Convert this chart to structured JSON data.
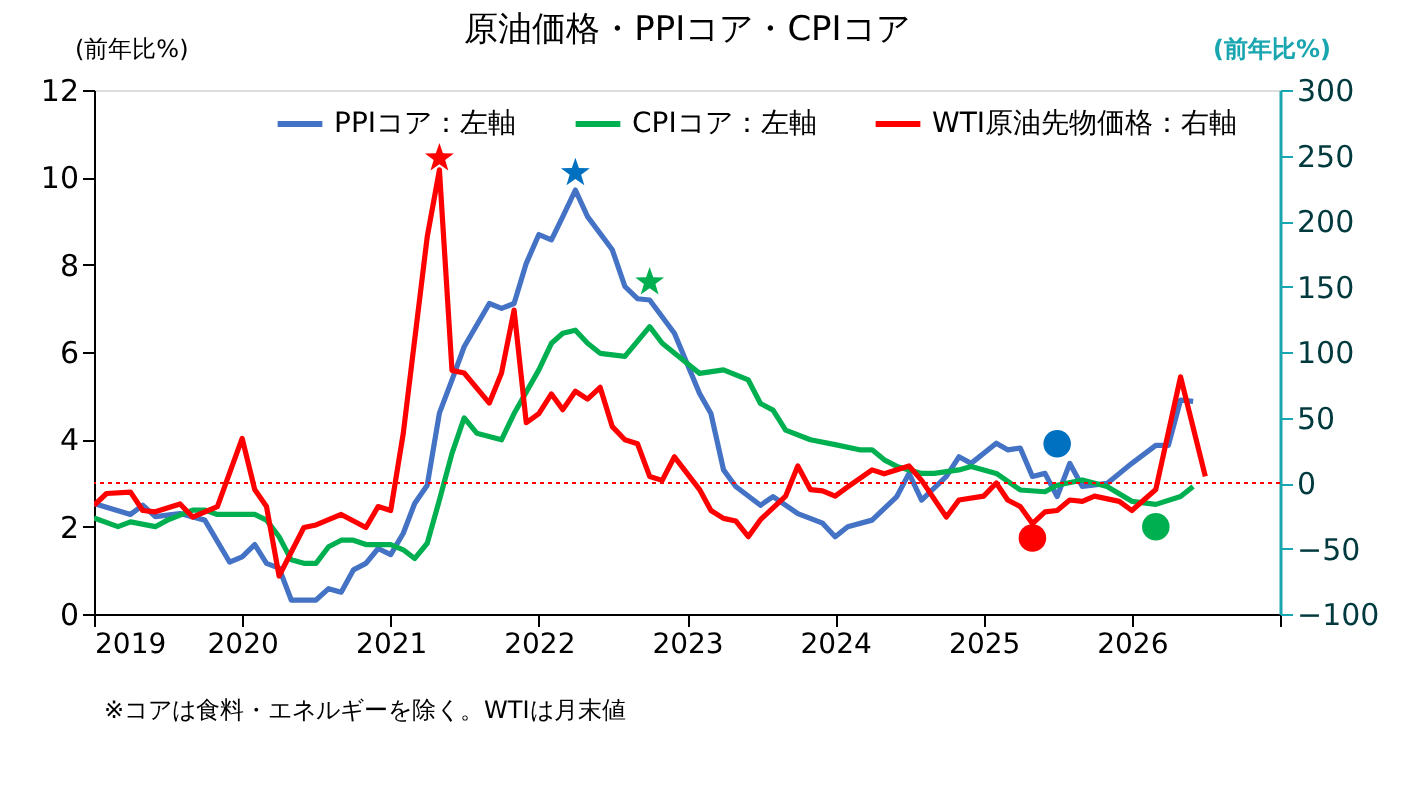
{
  "chart_data": {
    "type": "line",
    "title": "原油価格・PPIコア・CPIコア",
    "ylabel": "(前年比%)",
    "y2label": "(前年比%)",
    "xlim": [
      "2019-01",
      "2027-01"
    ],
    "xticks": [
      {
        "value": "2019-01",
        "label": "2019"
      },
      {
        "value": "2020-01",
        "label": "2020"
      },
      {
        "value": "2021-01",
        "label": "2021"
      },
      {
        "value": "2022-01",
        "label": "2022"
      },
      {
        "value": "2023-01",
        "label": "2023"
      },
      {
        "value": "2024-01",
        "label": "2024"
      },
      {
        "value": "2025-01",
        "label": "2025"
      },
      {
        "value": "2026-01",
        "label": "2026"
      },
      {
        "value": "2027-01",
        "label": null
      }
    ],
    "ylim": [
      0,
      12
    ],
    "yticks": [
      0,
      2,
      4,
      6,
      8,
      10,
      12
    ],
    "y2lim": [
      -100,
      300
    ],
    "y2ticks": [
      -100,
      -50,
      0,
      50,
      100,
      150,
      200,
      250,
      300
    ],
    "grid": false,
    "legend": "top",
    "marker": "none",
    "line_style": "solid",
    "ref_lines": [
      {
        "axis": "y2",
        "value": 0,
        "color": "#ff0000",
        "line_style": "dotted"
      }
    ],
    "annotations": [
      "※コアは食料・エネルギーを除く。WTIは月末値"
    ],
    "series": [
      {
        "name": "PPIコア：左軸",
        "color": "#4472c4",
        "x": [
          "2019-01",
          "2019-04",
          "2019-05",
          "2019-06",
          "2019-08",
          "2019-10",
          "2019-12",
          "2020-01",
          "2020-02",
          "2020-03",
          "2020-04",
          "2020-05",
          "2020-07",
          "2020-08",
          "2020-09",
          "2020-10",
          "2020-11",
          "2020-12",
          "2021-01",
          "2021-02",
          "2021-03",
          "2021-04",
          "2021-05",
          "2021-06",
          "2021-07",
          "2021-09",
          "2021-10",
          "2021-11",
          "2021-12",
          "2022-01",
          "2022-02",
          "2022-03",
          "2022-04",
          "2022-05",
          "2022-07",
          "2022-08",
          "2022-09",
          "2022-10",
          "2022-12",
          "2023-02",
          "2023-03",
          "2023-04",
          "2023-05",
          "2023-07",
          "2023-08",
          "2023-10",
          "2023-12",
          "2024-01",
          "2024-02",
          "2024-04",
          "2024-06",
          "2024-07",
          "2024-08",
          "2024-10",
          "2024-11",
          "2024-12",
          "2025-02",
          "2025-03",
          "2025-04",
          "2025-05",
          "2025-06",
          "2025-07",
          "2025-08",
          "2025-09",
          "2025-11",
          "2026-01",
          "2026-03",
          "2026-04",
          "2026-05",
          "2026-06"
        ],
        "values": [
          2.53,
          2.28,
          2.49,
          2.23,
          2.3,
          2.15,
          1.19,
          1.31,
          1.59,
          1.16,
          1.05,
          0.32,
          0.32,
          0.58,
          0.5,
          1.01,
          1.16,
          1.5,
          1.36,
          1.85,
          2.53,
          2.95,
          4.6,
          5.36,
          6.12,
          7.11,
          7.0,
          7.11,
          8.03,
          8.69,
          8.57,
          9.1,
          9.71,
          9.1,
          8.34,
          7.5,
          7.22,
          7.19,
          6.43,
          5.05,
          4.59,
          3.3,
          2.92,
          2.49,
          2.69,
          2.3,
          2.08,
          1.77,
          2.0,
          2.15,
          2.69,
          3.22,
          2.61,
          3.15,
          3.6,
          3.45,
          3.91,
          3.76,
          3.8,
          3.15,
          3.22,
          2.69,
          3.45,
          2.92,
          2.99,
          3.45,
          3.86,
          3.86,
          4.9,
          4.87
        ]
      },
      {
        "name": "CPIコア：左軸",
        "color": "#00b050",
        "x": [
          "2019-01",
          "2019-03",
          "2019-04",
          "2019-06",
          "2019-07",
          "2019-09",
          "2019-10",
          "2019-11",
          "2020-02",
          "2020-03",
          "2020-04",
          "2020-05",
          "2020-06",
          "2020-07",
          "2020-08",
          "2020-09",
          "2020-10",
          "2020-11",
          "2021-01",
          "2021-02",
          "2021-03",
          "2021-04",
          "2021-05",
          "2021-06",
          "2021-07",
          "2021-08",
          "2021-10",
          "2021-11",
          "2022-01",
          "2022-02",
          "2022-03",
          "2022-04",
          "2022-05",
          "2022-06",
          "2022-08",
          "2022-10",
          "2022-11",
          "2023-01",
          "2023-02",
          "2023-04",
          "2023-06",
          "2023-07",
          "2023-08",
          "2023-09",
          "2023-11",
          "2024-01",
          "2024-03",
          "2024-04",
          "2024-05",
          "2024-06",
          "2024-08",
          "2024-09",
          "2024-11",
          "2024-12",
          "2025-02",
          "2025-04",
          "2025-06",
          "2025-07",
          "2025-09",
          "2025-11",
          "2026-01",
          "2026-03",
          "2026-05",
          "2026-06"
        ],
        "values": [
          2.2,
          2.0,
          2.11,
          2.0,
          2.15,
          2.38,
          2.38,
          2.28,
          2.28,
          2.15,
          1.77,
          1.24,
          1.16,
          1.16,
          1.54,
          1.69,
          1.69,
          1.59,
          1.59,
          1.47,
          1.27,
          1.62,
          2.61,
          3.68,
          4.49,
          4.14,
          3.99,
          4.59,
          5.59,
          6.2,
          6.43,
          6.5,
          6.2,
          5.97,
          5.9,
          6.58,
          6.2,
          5.74,
          5.51,
          5.59,
          5.36,
          4.82,
          4.67,
          4.21,
          3.99,
          3.88,
          3.76,
          3.76,
          3.53,
          3.38,
          3.22,
          3.22,
          3.3,
          3.38,
          3.22,
          2.84,
          2.8,
          2.95,
          3.07,
          2.92,
          2.58,
          2.51,
          2.69,
          2.92
        ]
      },
      {
        "name": "WTI原油先物価格：右軸",
        "color": "#ff0000",
        "axis": "y2",
        "x": [
          "2019-01",
          "2019-02",
          "2019-04",
          "2019-05",
          "2019-06",
          "2019-08",
          "2019-09",
          "2019-11",
          "2020-01",
          "2020-02",
          "2020-03",
          "2020-04",
          "2020-06",
          "2020-07",
          "2020-09",
          "2020-11",
          "2020-12",
          "2021-01",
          "2021-02",
          "2021-04",
          "2021-05",
          "2021-06",
          "2021-07",
          "2021-09",
          "2021-10",
          "2021-11",
          "2021-12",
          "2022-01",
          "2022-02",
          "2022-03",
          "2022-04",
          "2022-05",
          "2022-06",
          "2022-07",
          "2022-08",
          "2022-09",
          "2022-10",
          "2022-11",
          "2022-12",
          "2023-02",
          "2023-03",
          "2023-04",
          "2023-05",
          "2023-06",
          "2023-07",
          "2023-09",
          "2023-10",
          "2023-11",
          "2023-12",
          "2024-01",
          "2024-02",
          "2024-04",
          "2024-05",
          "2024-07",
          "2024-08",
          "2024-10",
          "2024-11",
          "2025-01",
          "2025-02",
          "2025-03",
          "2025-04",
          "2025-05",
          "2025-06",
          "2025-07",
          "2025-08",
          "2025-09",
          "2025-10",
          "2025-12",
          "2026-01",
          "2026-03",
          "2026-05",
          "2026-07"
        ],
        "values": [
          -17,
          -8,
          -7,
          -21,
          -22,
          -16,
          -26,
          -18,
          34,
          -5,
          -18,
          -71,
          -34,
          -32,
          -24,
          -34,
          -18,
          -21,
          38,
          188,
          239,
          86,
          84,
          61,
          84,
          132,
          46,
          53,
          68,
          56,
          70,
          64,
          73,
          43,
          33,
          30,
          5,
          2,
          20,
          -5,
          -21,
          -27,
          -29,
          -41,
          -28,
          -10,
          13,
          -5,
          -6,
          -10,
          -3,
          10,
          7,
          13,
          2,
          -26,
          -13,
          -10,
          0,
          -13,
          -18,
          -31,
          -22,
          -21,
          -13,
          -14,
          -10,
          -14,
          -21,
          -5,
          81,
          5
        ]
      },
      {
        "type": "scatter",
        "marker": "star",
        "color": "#ff0000",
        "axis": "y2",
        "x": [
          "2021-05"
        ],
        "values": [
          248
        ]
      },
      {
        "type": "scatter",
        "marker": "star",
        "color": "#0070c0",
        "x": [
          "2022-04"
        ],
        "values": [
          10.1
        ]
      },
      {
        "type": "scatter",
        "marker": "star",
        "color": "#00b050",
        "x": [
          "2022-10"
        ],
        "values": [
          7.6
        ]
      },
      {
        "type": "scatter",
        "marker": "circle",
        "color": "#0070c0",
        "x": [
          "2025-07"
        ],
        "values": [
          3.9
        ]
      },
      {
        "type": "scatter",
        "marker": "circle",
        "color": "#ff0000",
        "axis": "y2",
        "x": [
          "2025-05"
        ],
        "values": [
          -42
        ]
      },
      {
        "type": "scatter",
        "marker": "circle",
        "color": "#00b050",
        "x": [
          "2026-03"
        ],
        "values": [
          2.0
        ]
      }
    ]
  }
}
